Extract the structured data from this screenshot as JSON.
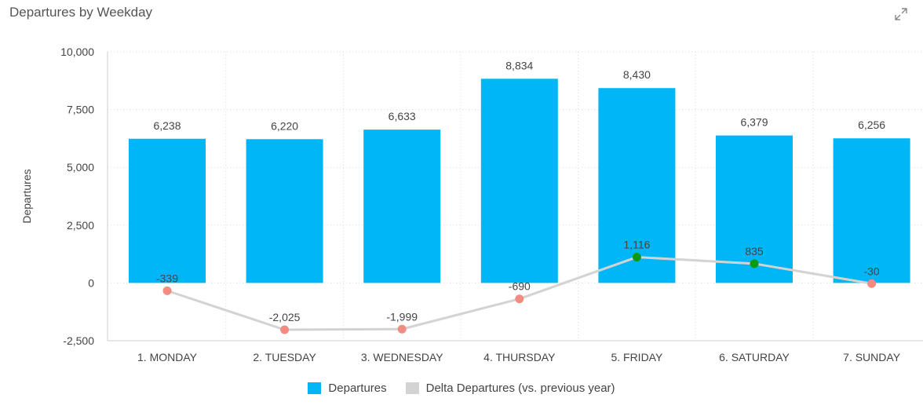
{
  "chart_data": {
    "type": "bar",
    "title": "Departures by Weekday",
    "ylabel": "Departures",
    "xlabel": "",
    "categories": [
      "1. MONDAY",
      "2. TUESDAY",
      "3. WEDNESDAY",
      "4. THURSDAY",
      "5. FRIDAY",
      "6. SATURDAY",
      "7. SUNDAY"
    ],
    "ylim": [
      -2500,
      10000
    ],
    "yticks": [
      10000,
      7500,
      5000,
      2500,
      0,
      -2500
    ],
    "ytick_labels": [
      "10,000",
      "7,500",
      "5,000",
      "2,500",
      "0",
      "-2,500"
    ],
    "grid": true,
    "legend_position": "bottom",
    "series": [
      {
        "name": "Departures",
        "type": "bar",
        "color": "#00b6f7",
        "values": [
          6238,
          6220,
          6633,
          8834,
          8430,
          6379,
          6256
        ],
        "labels": [
          "6,238",
          "6,220",
          "6,633",
          "8,834",
          "8,430",
          "6,379",
          "6,256"
        ]
      },
      {
        "name": "Delta Departures (vs. previous year)",
        "type": "line",
        "color": "#d3d3d3",
        "values": [
          -339,
          -2025,
          -1999,
          -690,
          1116,
          835,
          -30
        ],
        "labels": [
          "-339",
          "-2,025",
          "-1,999",
          "-690",
          "1,116",
          "835",
          "-30"
        ],
        "positive_marker_color": "#0e9a0e",
        "negative_marker_color": "#f28b82"
      }
    ]
  },
  "header": {
    "expand_icon": "expand-icon"
  }
}
